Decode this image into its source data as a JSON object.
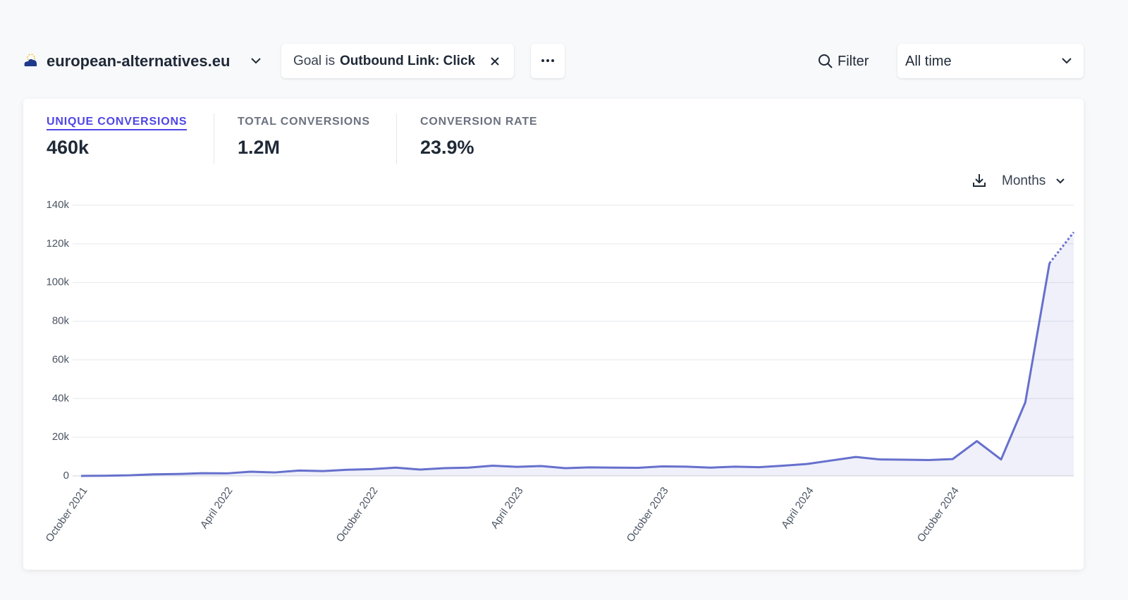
{
  "header": {
    "site": "european-alternatives.eu",
    "filter_prefix": "Goal is",
    "filter_value": "Outbound Link: Click",
    "filter_button": "Filter",
    "period": "All time"
  },
  "metrics": [
    {
      "label": "UNIQUE CONVERSIONS",
      "value": "460k"
    },
    {
      "label": "TOTAL CONVERSIONS",
      "value": "1.2M"
    },
    {
      "label": "CONVERSION RATE",
      "value": "23.9%"
    }
  ],
  "interval": "Months",
  "chart_data": {
    "type": "line",
    "categories": [
      "October 2021",
      null,
      null,
      null,
      null,
      null,
      "April 2022",
      null,
      null,
      null,
      null,
      null,
      "October 2022",
      null,
      null,
      null,
      null,
      null,
      "April 2023",
      null,
      null,
      null,
      null,
      null,
      "October 2023",
      null,
      null,
      null,
      null,
      null,
      "April 2024",
      null,
      null,
      null,
      null,
      null,
      "October 2024",
      null,
      null,
      null,
      null,
      null
    ],
    "values": [
      0,
      100,
      300,
      800,
      1000,
      1400,
      1300,
      2200,
      1800,
      2800,
      2500,
      3200,
      3500,
      4300,
      3300,
      4000,
      4300,
      5300,
      4700,
      5100,
      4000,
      4400,
      4300,
      4200,
      4900,
      4800,
      4300,
      4800,
      4500,
      5300,
      6200,
      8000,
      9800,
      8500,
      8400,
      8200,
      8700,
      18000,
      8500,
      38000,
      110000,
      126000
    ],
    "color": "#6670cc",
    "last_period_dashed": true,
    "grid": true,
    "ylim": [
      0,
      140000
    ],
    "yticks": [
      0,
      {
        "value": 20000,
        "label": "20k"
      },
      {
        "value": 40000,
        "label": "40k"
      },
      {
        "value": 60000,
        "label": "60k"
      },
      {
        "value": 80000,
        "label": "80k"
      },
      {
        "value": 100000,
        "label": "100k"
      },
      {
        "value": 120000,
        "label": "120k"
      },
      {
        "value": 140000,
        "label": "140k"
      }
    ]
  }
}
